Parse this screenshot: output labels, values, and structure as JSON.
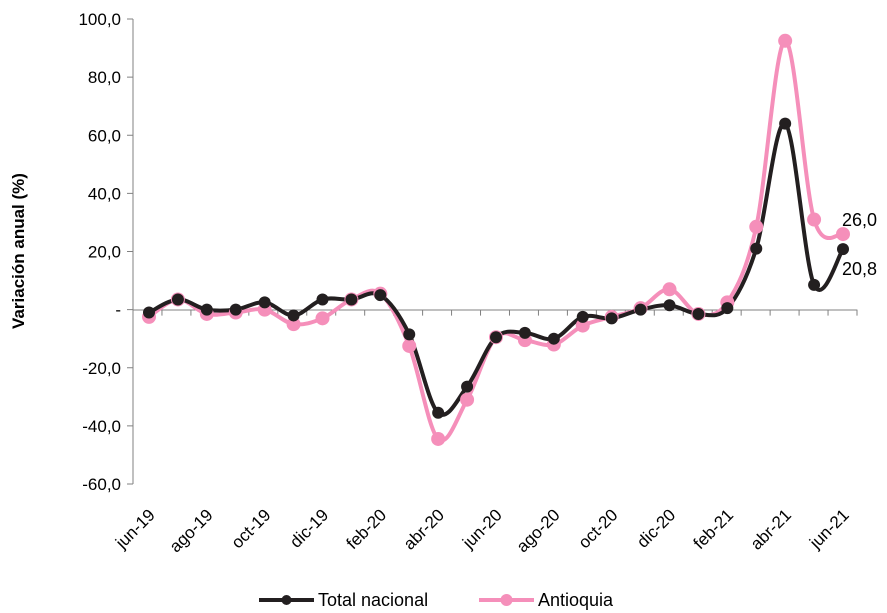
{
  "chart_data": {
    "type": "line",
    "title": "",
    "xlabel": "",
    "ylabel": "Variación anual (%)",
    "ylim": [
      -60,
      100
    ],
    "yticks": [
      -60,
      -40,
      -20,
      0,
      20,
      40,
      60,
      80,
      100
    ],
    "ytick_labels": [
      "-60,0",
      "-40,0",
      "-20,0",
      "-",
      "20,0",
      "40,0",
      "60,0",
      "80,0",
      "100,0"
    ],
    "x": [
      "jun-19",
      "jul-19",
      "ago-19",
      "sep-19",
      "oct-19",
      "nov-19",
      "dic-19",
      "ene-20",
      "feb-20",
      "mar-20",
      "abr-20",
      "may-20",
      "jun-20",
      "jul-20",
      "ago-20",
      "sep-20",
      "oct-20",
      "nov-20",
      "dic-20",
      "ene-21",
      "feb-21",
      "mar-21",
      "abr-21",
      "may-21",
      "jun-21"
    ],
    "xtick_labels": [
      "jun-19",
      "",
      "ago-19",
      "",
      "oct-19",
      "",
      "dic-19",
      "",
      "feb-20",
      "",
      "abr-20",
      "",
      "jun-20",
      "",
      "ago-20",
      "",
      "oct-20",
      "",
      "dic-20",
      "",
      "feb-21",
      "",
      "abr-21",
      "",
      "jun-21"
    ],
    "grid": false,
    "legend_position": "bottom",
    "series": [
      {
        "name": "Total nacional",
        "color": "#231f20",
        "values": [
          -1.0,
          3.5,
          0.0,
          0.0,
          2.5,
          -2.0,
          3.5,
          3.5,
          5.0,
          -8.5,
          -35.5,
          -26.5,
          -9.5,
          -8.0,
          -10.0,
          -2.5,
          -3.0,
          0.0,
          1.5,
          -1.5,
          0.5,
          21.0,
          64.0,
          8.5,
          20.8
        ]
      },
      {
        "name": "Antioquia",
        "color": "#f58fba",
        "values": [
          -2.5,
          3.5,
          -1.5,
          -1.0,
          0.0,
          -5.0,
          -3.0,
          3.5,
          5.5,
          -12.5,
          -44.5,
          -31.0,
          -9.5,
          -10.5,
          -12.0,
          -5.5,
          -2.5,
          0.5,
          7.0,
          -1.5,
          2.5,
          28.5,
          92.5,
          31.0,
          26.0
        ]
      }
    ],
    "annotations": [
      {
        "series": "Antioquia",
        "index": 24,
        "text": "26,0"
      },
      {
        "series": "Total nacional",
        "index": 24,
        "text": "20,8"
      }
    ]
  }
}
